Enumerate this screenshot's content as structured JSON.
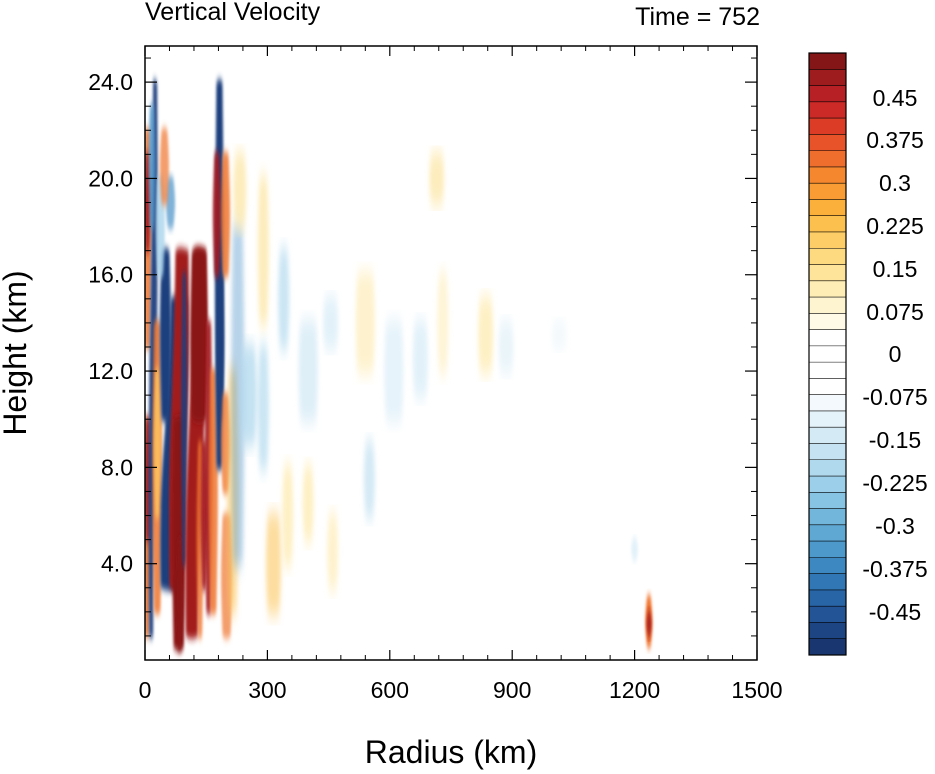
{
  "chart_data": {
    "type": "heatmap",
    "title": "Vertical Velocity",
    "subtitle": "Time = 752",
    "xlabel": "Radius (km)",
    "ylabel": "Height (km)",
    "xlim": [
      0,
      1500
    ],
    "ylim": [
      0,
      25.5
    ],
    "xticks": [
      0,
      300,
      600,
      900,
      1200,
      1500
    ],
    "xtick_labels": [
      "0",
      "300",
      "600",
      "900",
      "1200",
      "1500"
    ],
    "yticks": [
      4,
      8,
      12,
      16,
      20,
      24
    ],
    "ytick_labels": [
      "4.0",
      "8.0",
      "12.0",
      "16.0",
      "20.0",
      "24.0"
    ],
    "colorbar": {
      "levels": [
        0.45,
        0.375,
        0.3,
        0.225,
        0.15,
        0.075,
        0,
        -0.075,
        -0.15,
        -0.225,
        -0.3,
        -0.375,
        -0.45
      ],
      "labels": [
        "0.45",
        "0.375",
        "0.3",
        "0.225",
        "0.15",
        "0.075",
        "0",
        "-0.075",
        "-0.15",
        "-0.225",
        "-0.3",
        "-0.375",
        "-0.45"
      ],
      "colors": [
        "#841617",
        "#9e1b1e",
        "#b72024",
        "#cc2a26",
        "#dc3b26",
        "#e8532a",
        "#f06e2d",
        "#f5872f",
        "#f89c33",
        "#fbb03c",
        "#fcc04e",
        "#fdcd67",
        "#fdd97f",
        "#fee39a",
        "#feedb5",
        "#fef4cf",
        "#fff9e7",
        "#ffffff",
        "#ffffff",
        "#ffffff",
        "#ffffff",
        "#f3f9fc",
        "#e4f2f9",
        "#d4eaf5",
        "#c4e2f1",
        "#b1d9ee",
        "#9ccfe9",
        "#87c3e3",
        "#73b6dc",
        "#5fa8d4",
        "#4d99cb",
        "#3d88c1",
        "#3176b5",
        "#2865a7",
        "#225496",
        "#1d4483",
        "#1a3670"
      ]
    },
    "features": [
      {
        "r": [
          0,
          20
        ],
        "z": [
          0.5,
          22
        ],
        "w": "-0.45 to 0.45"
      },
      {
        "r": [
          20,
          80
        ],
        "z": [
          3,
          15
        ],
        "w": "<-0.45"
      },
      {
        "r": [
          60,
          130
        ],
        "z": [
          0.5,
          17
        ],
        "w": ">0.45"
      },
      {
        "r": [
          135,
          160
        ],
        "z": [
          10,
          17
        ],
        "w": ">0.45"
      },
      {
        "r": [
          175,
          190
        ],
        "z": [
          8,
          24
        ],
        "w": "-0.45 to 0.45"
      },
      {
        "r": [
          1230,
          1240
        ],
        "z": [
          0.5,
          2.5
        ],
        "w": "0.3 to 0.45"
      }
    ]
  }
}
